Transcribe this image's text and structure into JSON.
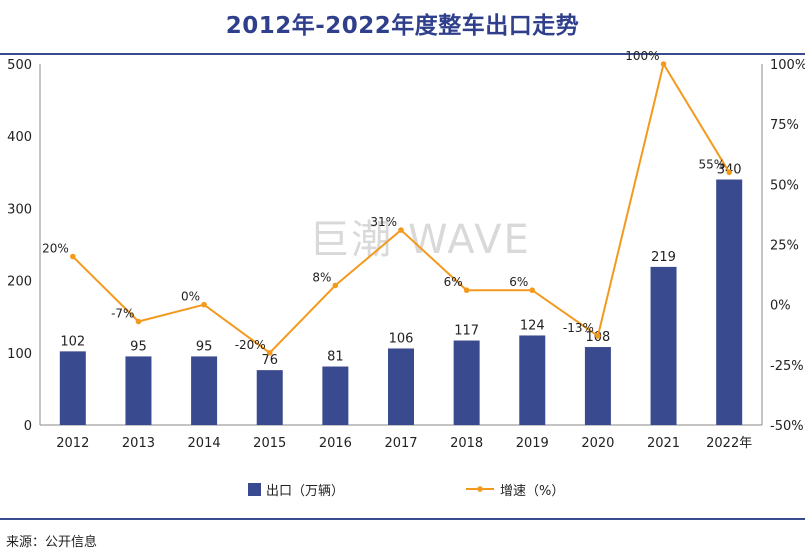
{
  "title": "2012年-2022年度整车出口走势",
  "source": "来源：公开信息",
  "watermark": "巨潮 WAVE",
  "colors": {
    "bar": "#3a4a8e",
    "line": "#f39a1e",
    "accent": "#2f3f8c"
  },
  "chart_data": {
    "type": "bar+line",
    "categories": [
      "2012",
      "2013",
      "2014",
      "2015",
      "2016",
      "2017",
      "2018",
      "2019",
      "2020",
      "2021",
      "2022年"
    ],
    "series": [
      {
        "name": "出口（万辆）",
        "type": "bar",
        "axis": "left",
        "values": [
          102,
          95,
          95,
          76,
          81,
          106,
          117,
          124,
          108,
          219,
          340
        ],
        "labels": [
          "102",
          "95",
          "95",
          "76",
          "81",
          "106",
          "117",
          "124",
          "108",
          "219",
          "340"
        ]
      },
      {
        "name": "增速（%）",
        "type": "line",
        "axis": "right",
        "values": [
          20,
          -7,
          0,
          -20,
          8,
          31,
          6,
          6,
          -13,
          100,
          55
        ],
        "labels": [
          "20%",
          "-7%",
          "0%",
          "-20%",
          "8%",
          "31%",
          "6%",
          "6%",
          "-13%",
          "100%",
          "55%"
        ]
      }
    ],
    "y_left": {
      "ylim": [
        0,
        500
      ],
      "ticks": [
        "0",
        "100",
        "200",
        "300",
        "400",
        "500"
      ]
    },
    "y_right": {
      "ylim": [
        -50,
        100
      ],
      "ticks": [
        "-50%",
        "-25%",
        "0%",
        "25%",
        "50%",
        "75%",
        "100%"
      ]
    },
    "grid": false,
    "legend_position": "bottom"
  }
}
